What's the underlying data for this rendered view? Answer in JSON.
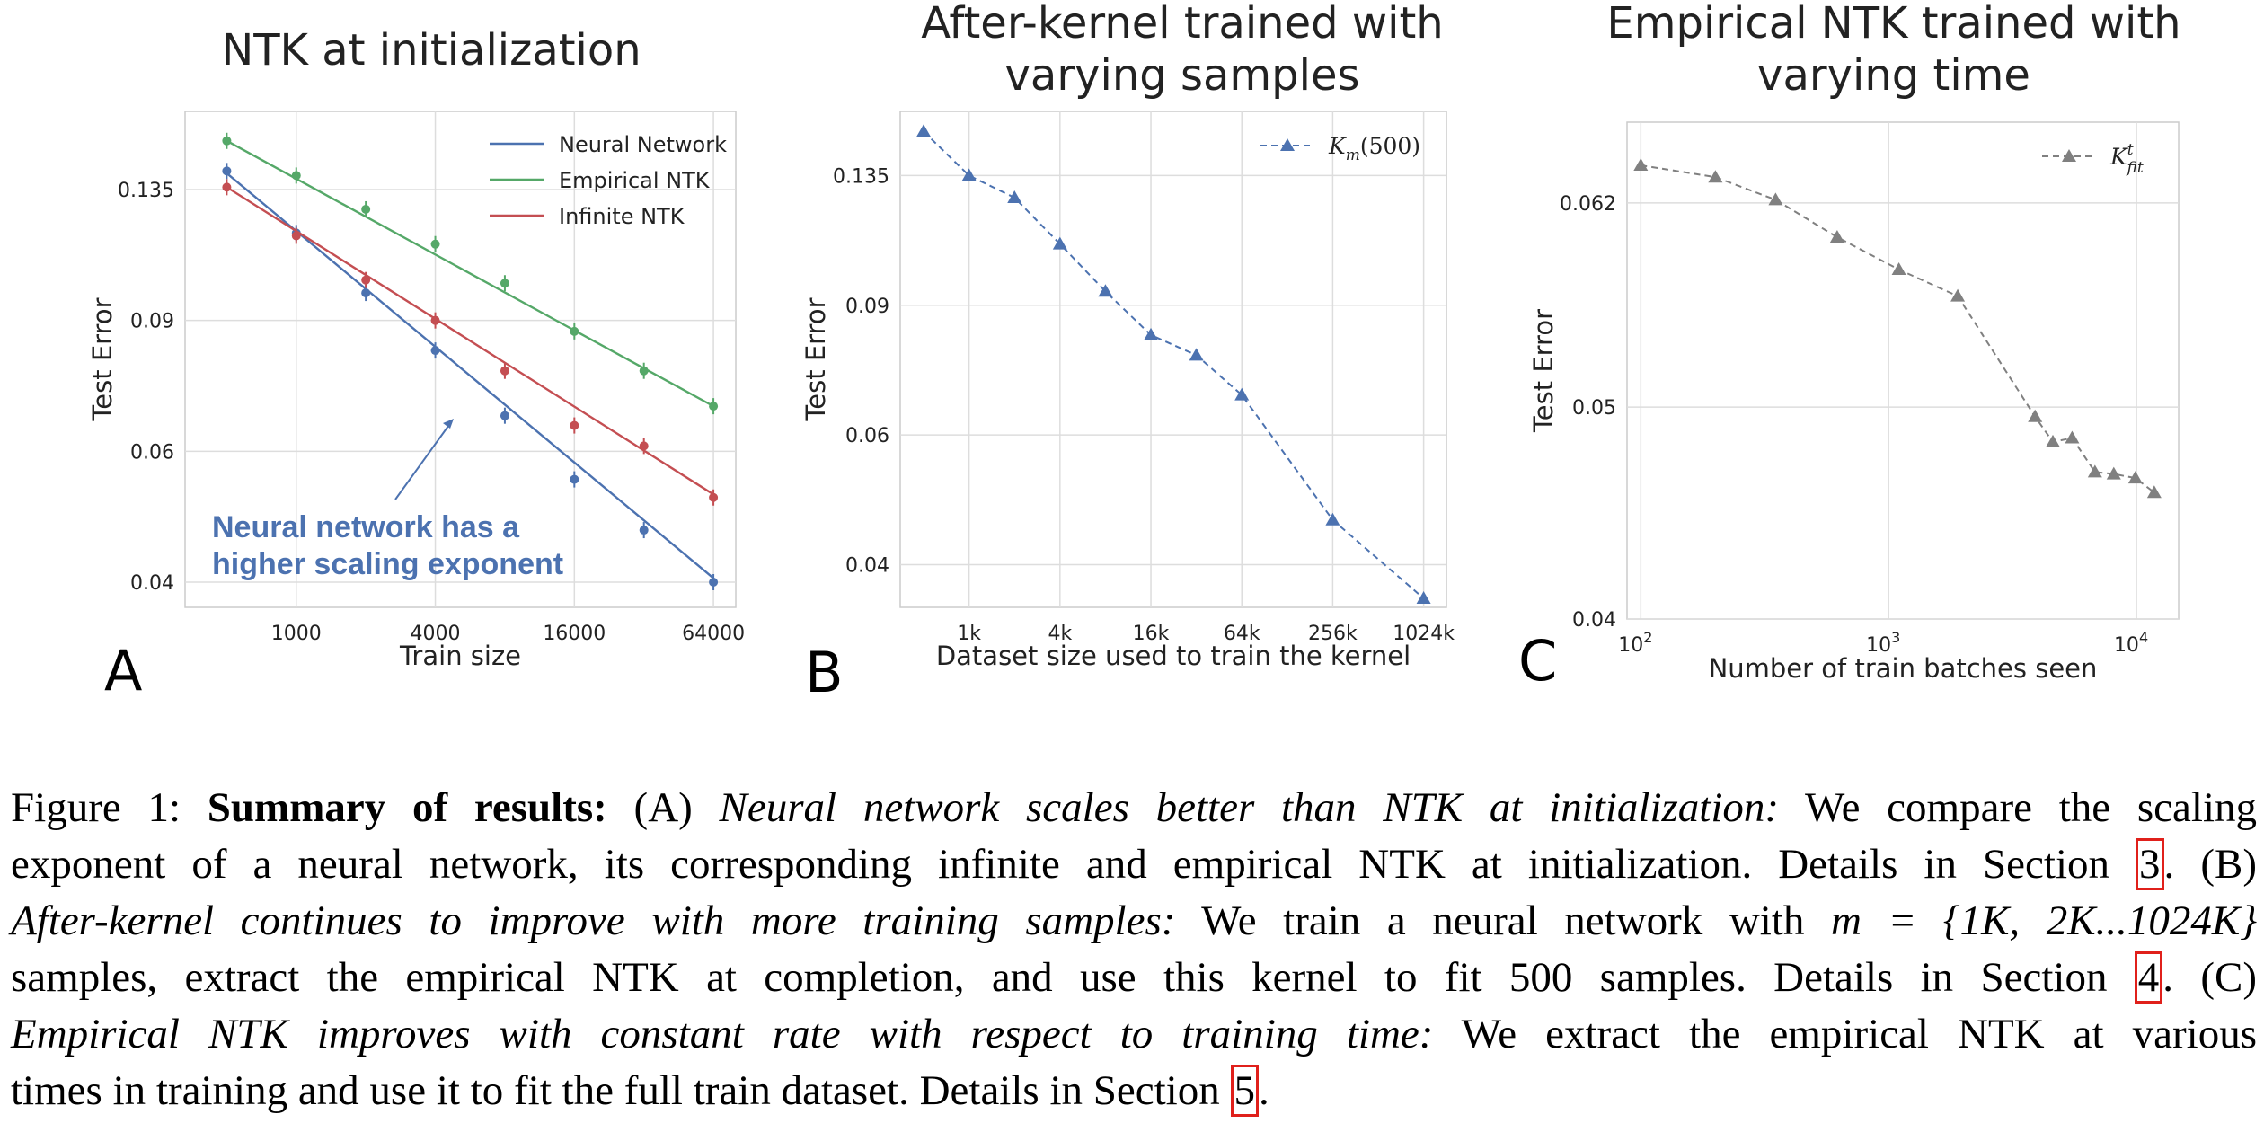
{
  "chart_data": [
    {
      "type": "line",
      "title": "NTK at initialization",
      "xlabel": "Train size",
      "ylabel": "Test Error",
      "x_scale": "log",
      "y_scale": "log",
      "x_ticks": [
        "1000",
        "4000",
        "16000",
        "64000"
      ],
      "y_ticks": [
        "0.04",
        "0.06",
        "0.09",
        "0.135"
      ],
      "xlim": [
        330,
        80000
      ],
      "ylim": [
        0.037,
        0.172
      ],
      "grid": true,
      "legend": "top-right",
      "panel_label": "A",
      "annotation": [
        "Neural network has a",
        "higher scaling exponent"
      ],
      "series": [
        {
          "name": "Neural Network",
          "color": "#4c72b0",
          "points": [
            [
              500,
              0.143
            ],
            [
              1000,
              0.118
            ],
            [
              2000,
              0.098
            ],
            [
              4000,
              0.082
            ],
            [
              8000,
              0.067
            ],
            [
              16000,
              0.055
            ],
            [
              32000,
              0.047
            ],
            [
              64000,
              0.04
            ]
          ],
          "fit": [
            [
              500,
              0.142
            ],
            [
              64000,
              0.0405
            ]
          ]
        },
        {
          "name": "Empirical NTK",
          "color": "#55a868",
          "points": [
            [
              500,
              0.157
            ],
            [
              1000,
              0.141
            ],
            [
              2000,
              0.127
            ],
            [
              4000,
              0.114
            ],
            [
              8000,
              0.101
            ],
            [
              16000,
              0.087
            ],
            [
              32000,
              0.077
            ],
            [
              64000,
              0.069
            ]
          ],
          "fit": [
            [
              500,
              0.157
            ],
            [
              64000,
              0.069
            ]
          ]
        },
        {
          "name": "Infinite NTK",
          "color": "#c44e52",
          "points": [
            [
              500,
              0.136
            ],
            [
              1000,
              0.117
            ],
            [
              2000,
              0.102
            ],
            [
              4000,
              0.09
            ],
            [
              8000,
              0.077
            ],
            [
              16000,
              0.065
            ],
            [
              32000,
              0.061
            ],
            [
              64000,
              0.052
            ]
          ],
          "fit": [
            [
              500,
              0.136
            ],
            [
              64000,
              0.0525
            ]
          ]
        }
      ]
    },
    {
      "type": "line",
      "title": "After-kernel trained with varying samples",
      "title_lines": [
        "After-kernel trained with",
        "varying samples"
      ],
      "xlabel": "Dataset size used to train the kernel",
      "ylabel": "Test Error",
      "x_scale": "log",
      "y_scale": "log",
      "x_ticks": [
        "1k",
        "4k",
        "16k",
        "64k",
        "256k",
        "1024k"
      ],
      "y_ticks": [
        "0.04",
        "0.06",
        "0.09",
        "0.135"
      ],
      "xlim": [
        0.35,
        1450
      ],
      "ylim": [
        0.035,
        0.165
      ],
      "grid": true,
      "legend": "top-right",
      "panel_label": "B",
      "series": [
        {
          "name": "Km(500)",
          "legend_main": "K",
          "legend_sub": "m",
          "legend_arg": "(500)",
          "color": "#4c72b0",
          "points": [
            [
              0.5,
              0.155
            ],
            [
              1,
              0.135
            ],
            [
              2,
              0.126
            ],
            [
              4,
              0.109
            ],
            [
              8,
              0.094
            ],
            [
              16,
              0.082
            ],
            [
              32,
              0.077
            ],
            [
              64,
              0.068
            ],
            [
              256,
              0.046
            ],
            [
              1024,
              0.036
            ]
          ]
        }
      ]
    },
    {
      "type": "line",
      "title": "Empirical NTK trained with varying time",
      "title_lines": [
        "Empirical NTK trained with",
        "varying  time"
      ],
      "xlabel": "Number of train batches seen",
      "ylabel": "Test Error",
      "x_scale": "log",
      "y_scale": "log",
      "x_ticks": [
        "10^2",
        "10^3",
        "10^4"
      ],
      "y_ticks": [
        "0.04",
        "0.05",
        "0.062"
      ],
      "xlim": [
        88,
        14800
      ],
      "ylim": [
        0.04,
        0.0675
      ],
      "grid": true,
      "legend": "top-right",
      "panel_label": "C",
      "series": [
        {
          "name": "Kt fit",
          "legend_main": "K",
          "legend_sub": "fit",
          "legend_sup": "t",
          "color": "#808080",
          "points": [
            [
              100,
              0.0645
            ],
            [
              200,
              0.0637
            ],
            [
              350,
              0.0622
            ],
            [
              620,
              0.0598
            ],
            [
              1100,
              0.0578
            ],
            [
              1900,
              0.0562
            ],
            [
              3900,
              0.0495
            ],
            [
              4600,
              0.0482
            ],
            [
              5500,
              0.0484
            ],
            [
              6800,
              0.0467
            ],
            [
              8100,
              0.0466
            ],
            [
              9900,
              0.0464
            ],
            [
              11800,
              0.0457
            ]
          ]
        }
      ]
    }
  ],
  "caption": {
    "lines": [
      [
        {
          "t": "Figure 1: ",
          "s": "n"
        },
        {
          "t": "Summary of results:",
          "s": "b"
        },
        {
          "t": " (A) ",
          "s": "n"
        },
        {
          "t": "Neural network scales better than NTK at initialization:",
          "s": "i"
        },
        {
          "t": " We compare the scaling",
          "s": "n"
        }
      ],
      [
        {
          "t": "exponent of a neural network, its corresponding infinite and empirical NTK at initialization. Details in Section ",
          "s": "n"
        },
        {
          "t": "3",
          "s": "r"
        },
        {
          "t": ". (B)",
          "s": "n"
        }
      ],
      [
        {
          "t": "After-kernel continues to improve with more training samples:",
          "s": "i"
        },
        {
          "t": " We train a neural network with ",
          "s": "n"
        },
        {
          "t": "m = {1K, 2K...1024K}",
          "s": "i"
        }
      ],
      [
        {
          "t": "samples, extract the empirical NTK at completion, and use this kernel to fit 500 samples. Details in Section ",
          "s": "n"
        },
        {
          "t": "4",
          "s": "r"
        },
        {
          "t": ". (C)",
          "s": "n"
        }
      ],
      [
        {
          "t": "Empirical NTK improves with constant rate with respect to training time:",
          "s": "i"
        },
        {
          "t": " We extract the empirical NTK at various",
          "s": "n"
        }
      ],
      [
        {
          "t": "times in training and use it to fit the full train dataset. Details in Section ",
          "s": "n"
        },
        {
          "t": "5",
          "s": "r"
        },
        {
          "t": ".",
          "s": "n"
        }
      ]
    ]
  }
}
